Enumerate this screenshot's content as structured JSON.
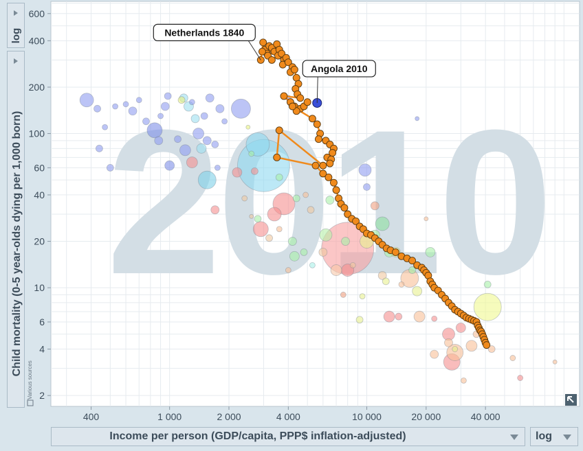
{
  "chart_data": {
    "type": "scatter",
    "year_watermark": "2010",
    "xlabel": "Income per person (GDP/capita, PPP$ inflation-adjusted)",
    "ylabel": "Child mortality (0-5 year-olds dying per 1,000 born)",
    "x_scale_label": "log",
    "y_scale_label": "log",
    "sources_label": "Various sources",
    "x_scale": "log",
    "y_scale": "log",
    "xlim": [
      250,
      120000
    ],
    "ylim": [
      1.7,
      720
    ],
    "x_ticks": [
      {
        "v": 400,
        "label": "400"
      },
      {
        "v": 1000,
        "label": "1 000"
      },
      {
        "v": 2000,
        "label": "2 000"
      },
      {
        "v": 4000,
        "label": "4 000"
      },
      {
        "v": 10000,
        "label": "10 000"
      },
      {
        "v": 20000,
        "label": "20 000"
      },
      {
        "v": 40000,
        "label": "40 000"
      }
    ],
    "y_ticks": [
      {
        "v": 2,
        "label": "2"
      },
      {
        "v": 4,
        "label": "4"
      },
      {
        "v": 6,
        "label": "6"
      },
      {
        "v": 10,
        "label": "10"
      },
      {
        "v": 20,
        "label": "20"
      },
      {
        "v": 40,
        "label": "40"
      },
      {
        "v": 60,
        "label": "60"
      },
      {
        "v": 100,
        "label": "100"
      },
      {
        "v": 200,
        "label": "200"
      },
      {
        "v": 400,
        "label": "400"
      },
      {
        "v": 600,
        "label": "600"
      }
    ],
    "annotations": [
      {
        "text": "Netherlands 1840",
        "x": 2900,
        "y": 300
      },
      {
        "text": "Angola 2010",
        "x": 5600,
        "y": 158
      }
    ],
    "highlight_point": {
      "x": 5600,
      "y": 158,
      "color": "#3a4fd8"
    },
    "trail_color": "#f08a1c",
    "trail": [
      [
        2900,
        300
      ],
      [
        2980,
        390
      ],
      [
        3050,
        350
      ],
      [
        3120,
        330
      ],
      [
        2950,
        340
      ],
      [
        3200,
        370
      ],
      [
        3300,
        360
      ],
      [
        3150,
        320
      ],
      [
        3400,
        340
      ],
      [
        3500,
        380
      ],
      [
        3600,
        350
      ],
      [
        3550,
        320
      ],
      [
        3300,
        300
      ],
      [
        3700,
        330
      ],
      [
        3800,
        300
      ],
      [
        3900,
        310
      ],
      [
        3750,
        280
      ],
      [
        4000,
        290
      ],
      [
        4200,
        270
      ],
      [
        4100,
        250
      ],
      [
        4300,
        260
      ],
      [
        4400,
        230
      ],
      [
        4500,
        210
      ],
      [
        4350,
        195
      ],
      [
        4450,
        180
      ],
      [
        4600,
        170
      ],
      [
        3800,
        175
      ],
      [
        4100,
        160
      ],
      [
        4300,
        150
      ],
      [
        4600,
        145
      ],
      [
        4800,
        150
      ],
      [
        5000,
        160
      ],
      [
        4400,
        140
      ],
      [
        4200,
        150
      ],
      [
        5300,
        125
      ],
      [
        5600,
        115
      ],
      [
        5800,
        100
      ],
      [
        5700,
        92
      ],
      [
        6200,
        90
      ],
      [
        6500,
        85
      ],
      [
        6800,
        80
      ],
      [
        6700,
        75
      ],
      [
        6300,
        70
      ],
      [
        6600,
        68
      ],
      [
        6500,
        64
      ],
      [
        6000,
        62
      ],
      [
        3600,
        105
      ],
      [
        3500,
        70
      ],
      [
        5500,
        62
      ],
      [
        6000,
        55
      ],
      [
        6400,
        52
      ],
      [
        6800,
        48
      ],
      [
        7000,
        43
      ],
      [
        7200,
        38
      ],
      [
        7400,
        35
      ],
      [
        7700,
        33
      ],
      [
        8000,
        30
      ],
      [
        8400,
        28
      ],
      [
        8800,
        27
      ],
      [
        9200,
        25
      ],
      [
        9600,
        24
      ],
      [
        10000,
        22.5
      ],
      [
        10500,
        22
      ],
      [
        11000,
        21
      ],
      [
        11500,
        20
      ],
      [
        12000,
        19
      ],
      [
        12600,
        18
      ],
      [
        13200,
        17.5
      ],
      [
        14000,
        17
      ],
      [
        15000,
        16
      ],
      [
        16000,
        15.5
      ],
      [
        17000,
        15
      ],
      [
        18000,
        14
      ],
      [
        19000,
        13.5
      ],
      [
        19500,
        13
      ],
      [
        20000,
        12.5
      ],
      [
        20500,
        12
      ],
      [
        21000,
        11
      ],
      [
        21500,
        10.5
      ],
      [
        22000,
        10
      ],
      [
        23000,
        9.6
      ],
      [
        24000,
        9
      ],
      [
        25000,
        8.5
      ],
      [
        26000,
        8
      ],
      [
        27000,
        7.6
      ],
      [
        28000,
        7.2
      ],
      [
        29000,
        7
      ],
      [
        30000,
        6.8
      ],
      [
        31000,
        6.6
      ],
      [
        32000,
        6.4
      ],
      [
        33000,
        6.3
      ],
      [
        34000,
        6.2
      ],
      [
        35000,
        6.1
      ],
      [
        36000,
        6.0
      ],
      [
        36500,
        5.7
      ],
      [
        37000,
        5.5
      ],
      [
        37500,
        5.3
      ],
      [
        38000,
        5.2
      ],
      [
        38500,
        5.0
      ],
      [
        39000,
        4.8
      ],
      [
        39500,
        4.6
      ],
      [
        40000,
        4.4
      ],
      [
        40500,
        4.25
      ]
    ],
    "bubbles": [
      {
        "x": 380,
        "y": 165,
        "r": 10,
        "c": "#8f9cf0"
      },
      {
        "x": 430,
        "y": 145,
        "r": 5,
        "c": "#8f9cf0"
      },
      {
        "x": 470,
        "y": 110,
        "r": 4,
        "c": "#8f9cf0"
      },
      {
        "x": 440,
        "y": 80,
        "r": 5,
        "c": "#8f9cf0"
      },
      {
        "x": 500,
        "y": 60,
        "r": 5,
        "c": "#8f9cf0"
      },
      {
        "x": 530,
        "y": 150,
        "r": 4,
        "c": "#8f9cf0"
      },
      {
        "x": 600,
        "y": 155,
        "r": 4,
        "c": "#8f9cf0"
      },
      {
        "x": 650,
        "y": 140,
        "r": 6,
        "c": "#8f9cf0"
      },
      {
        "x": 700,
        "y": 165,
        "r": 4,
        "c": "#8f9cf0"
      },
      {
        "x": 760,
        "y": 120,
        "r": 5,
        "c": "#8f9cf0"
      },
      {
        "x": 840,
        "y": 105,
        "r": 11,
        "c": "#7f8fe8"
      },
      {
        "x": 880,
        "y": 90,
        "r": 6,
        "c": "#8f9cf0"
      },
      {
        "x": 900,
        "y": 130,
        "r": 4,
        "c": "#8f9cf0"
      },
      {
        "x": 950,
        "y": 150,
        "r": 6,
        "c": "#8f9cf0"
      },
      {
        "x": 980,
        "y": 175,
        "r": 5,
        "c": "#8f9cf0"
      },
      {
        "x": 1000,
        "y": 62,
        "r": 7,
        "c": "#7f8fe8"
      },
      {
        "x": 1100,
        "y": 92,
        "r": 5,
        "c": "#8f9cf0"
      },
      {
        "x": 1200,
        "y": 78,
        "r": 8,
        "c": "#8f9cf0"
      },
      {
        "x": 1300,
        "y": 160,
        "r": 4,
        "c": "#8f9cf0"
      },
      {
        "x": 1400,
        "y": 100,
        "r": 8,
        "c": "#8f9cf0"
      },
      {
        "x": 1500,
        "y": 130,
        "r": 5,
        "c": "#8f9cf0"
      },
      {
        "x": 1550,
        "y": 90,
        "r": 6,
        "c": "#8f9cf0"
      },
      {
        "x": 1600,
        "y": 170,
        "r": 6,
        "c": "#8f9cf0"
      },
      {
        "x": 1700,
        "y": 85,
        "r": 5,
        "c": "#8f9cf0"
      },
      {
        "x": 1750,
        "y": 60,
        "r": 4,
        "c": "#8f9cf0"
      },
      {
        "x": 1800,
        "y": 145,
        "r": 6,
        "c": "#8f9cf0"
      },
      {
        "x": 1900,
        "y": 120,
        "r": 4,
        "c": "#8f9cf0"
      },
      {
        "x": 2300,
        "y": 145,
        "r": 14,
        "c": "#8f9cf0"
      },
      {
        "x": 1250,
        "y": 150,
        "r": 7,
        "c": "#9fe0f0"
      },
      {
        "x": 1180,
        "y": 170,
        "r": 6,
        "c": "#9fe0f0"
      },
      {
        "x": 1350,
        "y": 125,
        "r": 6,
        "c": "#9fe0f0"
      },
      {
        "x": 1450,
        "y": 80,
        "r": 7,
        "c": "#9fe0f0"
      },
      {
        "x": 1550,
        "y": 50,
        "r": 13,
        "c": "#7fd0e8"
      },
      {
        "x": 3000,
        "y": 62,
        "r": 38,
        "c": "#8fd8f0"
      },
      {
        "x": 2800,
        "y": 85,
        "r": 17,
        "c": "#8fd8f0"
      },
      {
        "x": 1150,
        "y": 165,
        "r": 5,
        "c": "#e8f080"
      },
      {
        "x": 2500,
        "y": 110,
        "r": 3,
        "c": "#e8f080"
      },
      {
        "x": 1300,
        "y": 65,
        "r": 8,
        "c": "#f59090"
      },
      {
        "x": 1700,
        "y": 32,
        "r": 6,
        "c": "#f59090"
      },
      {
        "x": 2200,
        "y": 56,
        "r": 7,
        "c": "#f59090"
      },
      {
        "x": 2700,
        "y": 57,
        "r": 5,
        "c": "#f59090"
      },
      {
        "x": 3400,
        "y": 30,
        "r": 10,
        "c": "#f59090"
      },
      {
        "x": 3800,
        "y": 35,
        "r": 16,
        "c": "#f59090"
      },
      {
        "x": 2900,
        "y": 24,
        "r": 11,
        "c": "#f59090"
      },
      {
        "x": 8000,
        "y": 18,
        "r": 38,
        "c": "#f8a0a0"
      },
      {
        "x": 8000,
        "y": 13,
        "r": 9,
        "c": "#f59090"
      },
      {
        "x": 13000,
        "y": 6.5,
        "r": 8,
        "c": "#f59090"
      },
      {
        "x": 14500,
        "y": 6.5,
        "r": 5,
        "c": "#f59090"
      },
      {
        "x": 26000,
        "y": 5,
        "r": 9,
        "c": "#f59090"
      },
      {
        "x": 27000,
        "y": 3.3,
        "r": 12,
        "c": "#f59090"
      },
      {
        "x": 30000,
        "y": 5.5,
        "r": 7,
        "c": "#f59090"
      },
      {
        "x": 60000,
        "y": 2.6,
        "r": 4,
        "c": "#f59090"
      },
      {
        "x": 5200,
        "y": 32,
        "r": 5,
        "c": "#f0c8a0"
      },
      {
        "x": 6000,
        "y": 17,
        "r": 6,
        "c": "#f0c8a0"
      },
      {
        "x": 7000,
        "y": 13,
        "r": 8,
        "c": "#f8c8a8"
      },
      {
        "x": 12000,
        "y": 12,
        "r": 6,
        "c": "#f0c8a0"
      },
      {
        "x": 16500,
        "y": 11.5,
        "r": 13,
        "c": "#f8c098"
      },
      {
        "x": 18500,
        "y": 6.5,
        "r": 8,
        "c": "#f8c098"
      },
      {
        "x": 28000,
        "y": 3.8,
        "r": 12,
        "c": "#f8c098"
      },
      {
        "x": 26000,
        "y": 4.4,
        "r": 6,
        "c": "#f8c098"
      },
      {
        "x": 22000,
        "y": 3.7,
        "r": 6,
        "c": "#f8c098"
      },
      {
        "x": 31000,
        "y": 2.5,
        "r": 4,
        "c": "#f8c098"
      },
      {
        "x": 34000,
        "y": 4.2,
        "r": 8,
        "c": "#f8c098"
      },
      {
        "x": 43000,
        "y": 4.0,
        "r": 5,
        "c": "#f8c098"
      },
      {
        "x": 36000,
        "y": 5.0,
        "r": 5,
        "c": "#f8c098"
      },
      {
        "x": 55000,
        "y": 3.5,
        "r": 4,
        "c": "#f8c098"
      },
      {
        "x": 90000,
        "y": 3.3,
        "r": 3,
        "c": "#f8c098"
      },
      {
        "x": 3200,
        "y": 21,
        "r": 5,
        "c": "#f0c8a0"
      },
      {
        "x": 2400,
        "y": 38,
        "r": 4,
        "c": "#f0c8a0"
      },
      {
        "x": 2600,
        "y": 29,
        "r": 3,
        "c": "#f0c8a0"
      },
      {
        "x": 3600,
        "y": 52,
        "r": 5,
        "c": "#a8f0a8"
      },
      {
        "x": 2600,
        "y": 74,
        "r": 4,
        "c": "#a8f0a8"
      },
      {
        "x": 4400,
        "y": 38,
        "r": 5,
        "c": "#a8f0a8"
      },
      {
        "x": 2800,
        "y": 28,
        "r": 5,
        "c": "#a8f0a8"
      },
      {
        "x": 4200,
        "y": 20,
        "r": 6,
        "c": "#a8f0a8"
      },
      {
        "x": 4800,
        "y": 17,
        "r": 5,
        "c": "#a8f0a8"
      },
      {
        "x": 4300,
        "y": 16,
        "r": 7,
        "c": "#a8f0a8"
      },
      {
        "x": 6500,
        "y": 37,
        "r": 6,
        "c": "#a8f0a8"
      },
      {
        "x": 6200,
        "y": 22,
        "r": 9,
        "c": "#b8f0a8"
      },
      {
        "x": 7800,
        "y": 20,
        "r": 6,
        "c": "#a8f0a8"
      },
      {
        "x": 11000,
        "y": 22,
        "r": 7,
        "c": "#a8f0a8"
      },
      {
        "x": 12000,
        "y": 26,
        "r": 10,
        "c": "#90e0a0"
      },
      {
        "x": 13000,
        "y": 17,
        "r": 7,
        "c": "#a8f0a8"
      },
      {
        "x": 21000,
        "y": 17,
        "r": 7,
        "c": "#a8f0a8"
      },
      {
        "x": 17000,
        "y": 13,
        "r": 5,
        "c": "#a8f0a8"
      },
      {
        "x": 18000,
        "y": 9.5,
        "r": 7,
        "c": "#e8f090"
      },
      {
        "x": 10000,
        "y": 20,
        "r": 10,
        "c": "#e8f090"
      },
      {
        "x": 14000,
        "y": 17,
        "r": 7,
        "c": "#e8f090"
      },
      {
        "x": 9500,
        "y": 8.8,
        "r": 4,
        "c": "#e8f090"
      },
      {
        "x": 9200,
        "y": 6.2,
        "r": 5,
        "c": "#e8f090"
      },
      {
        "x": 12500,
        "y": 11,
        "r": 5,
        "c": "#e8f090"
      },
      {
        "x": 28000,
        "y": 4,
        "r": 4,
        "c": "#e8f090"
      },
      {
        "x": 41000,
        "y": 7.5,
        "r": 20,
        "c": "#f0f890"
      },
      {
        "x": 41000,
        "y": 10.5,
        "r": 5,
        "c": "#a8f0a8"
      },
      {
        "x": 9800,
        "y": 58,
        "r": 9,
        "c": "#8f9cf0"
      },
      {
        "x": 10000,
        "y": 45,
        "r": 5,
        "c": "#8f9cf0"
      },
      {
        "x": 18000,
        "y": 125,
        "r": 3,
        "c": "#8f9cf0"
      },
      {
        "x": 4000,
        "y": 170,
        "r": 4,
        "c": "#8f9cf0"
      },
      {
        "x": 4900,
        "y": 40,
        "r": 4,
        "c": "#f8c098"
      },
      {
        "x": 11000,
        "y": 34,
        "r": 6,
        "c": "#f0a080"
      },
      {
        "x": 8500,
        "y": 14,
        "r": 4,
        "c": "#f0c8a0"
      },
      {
        "x": 7600,
        "y": 9,
        "r": 4,
        "c": "#f0a080"
      },
      {
        "x": 15000,
        "y": 10.5,
        "r": 4,
        "c": "#f8c098"
      },
      {
        "x": 22000,
        "y": 6.3,
        "r": 4,
        "c": "#f59090"
      },
      {
        "x": 20000,
        "y": 28,
        "r": 3,
        "c": "#f8c098"
      },
      {
        "x": 3600,
        "y": 24,
        "r": 4,
        "c": "#f8c098"
      },
      {
        "x": 5300,
        "y": 14,
        "r": 4,
        "c": "#a8f0e8"
      },
      {
        "x": 4000,
        "y": 13,
        "r": 4,
        "c": "#f8c098"
      }
    ]
  }
}
